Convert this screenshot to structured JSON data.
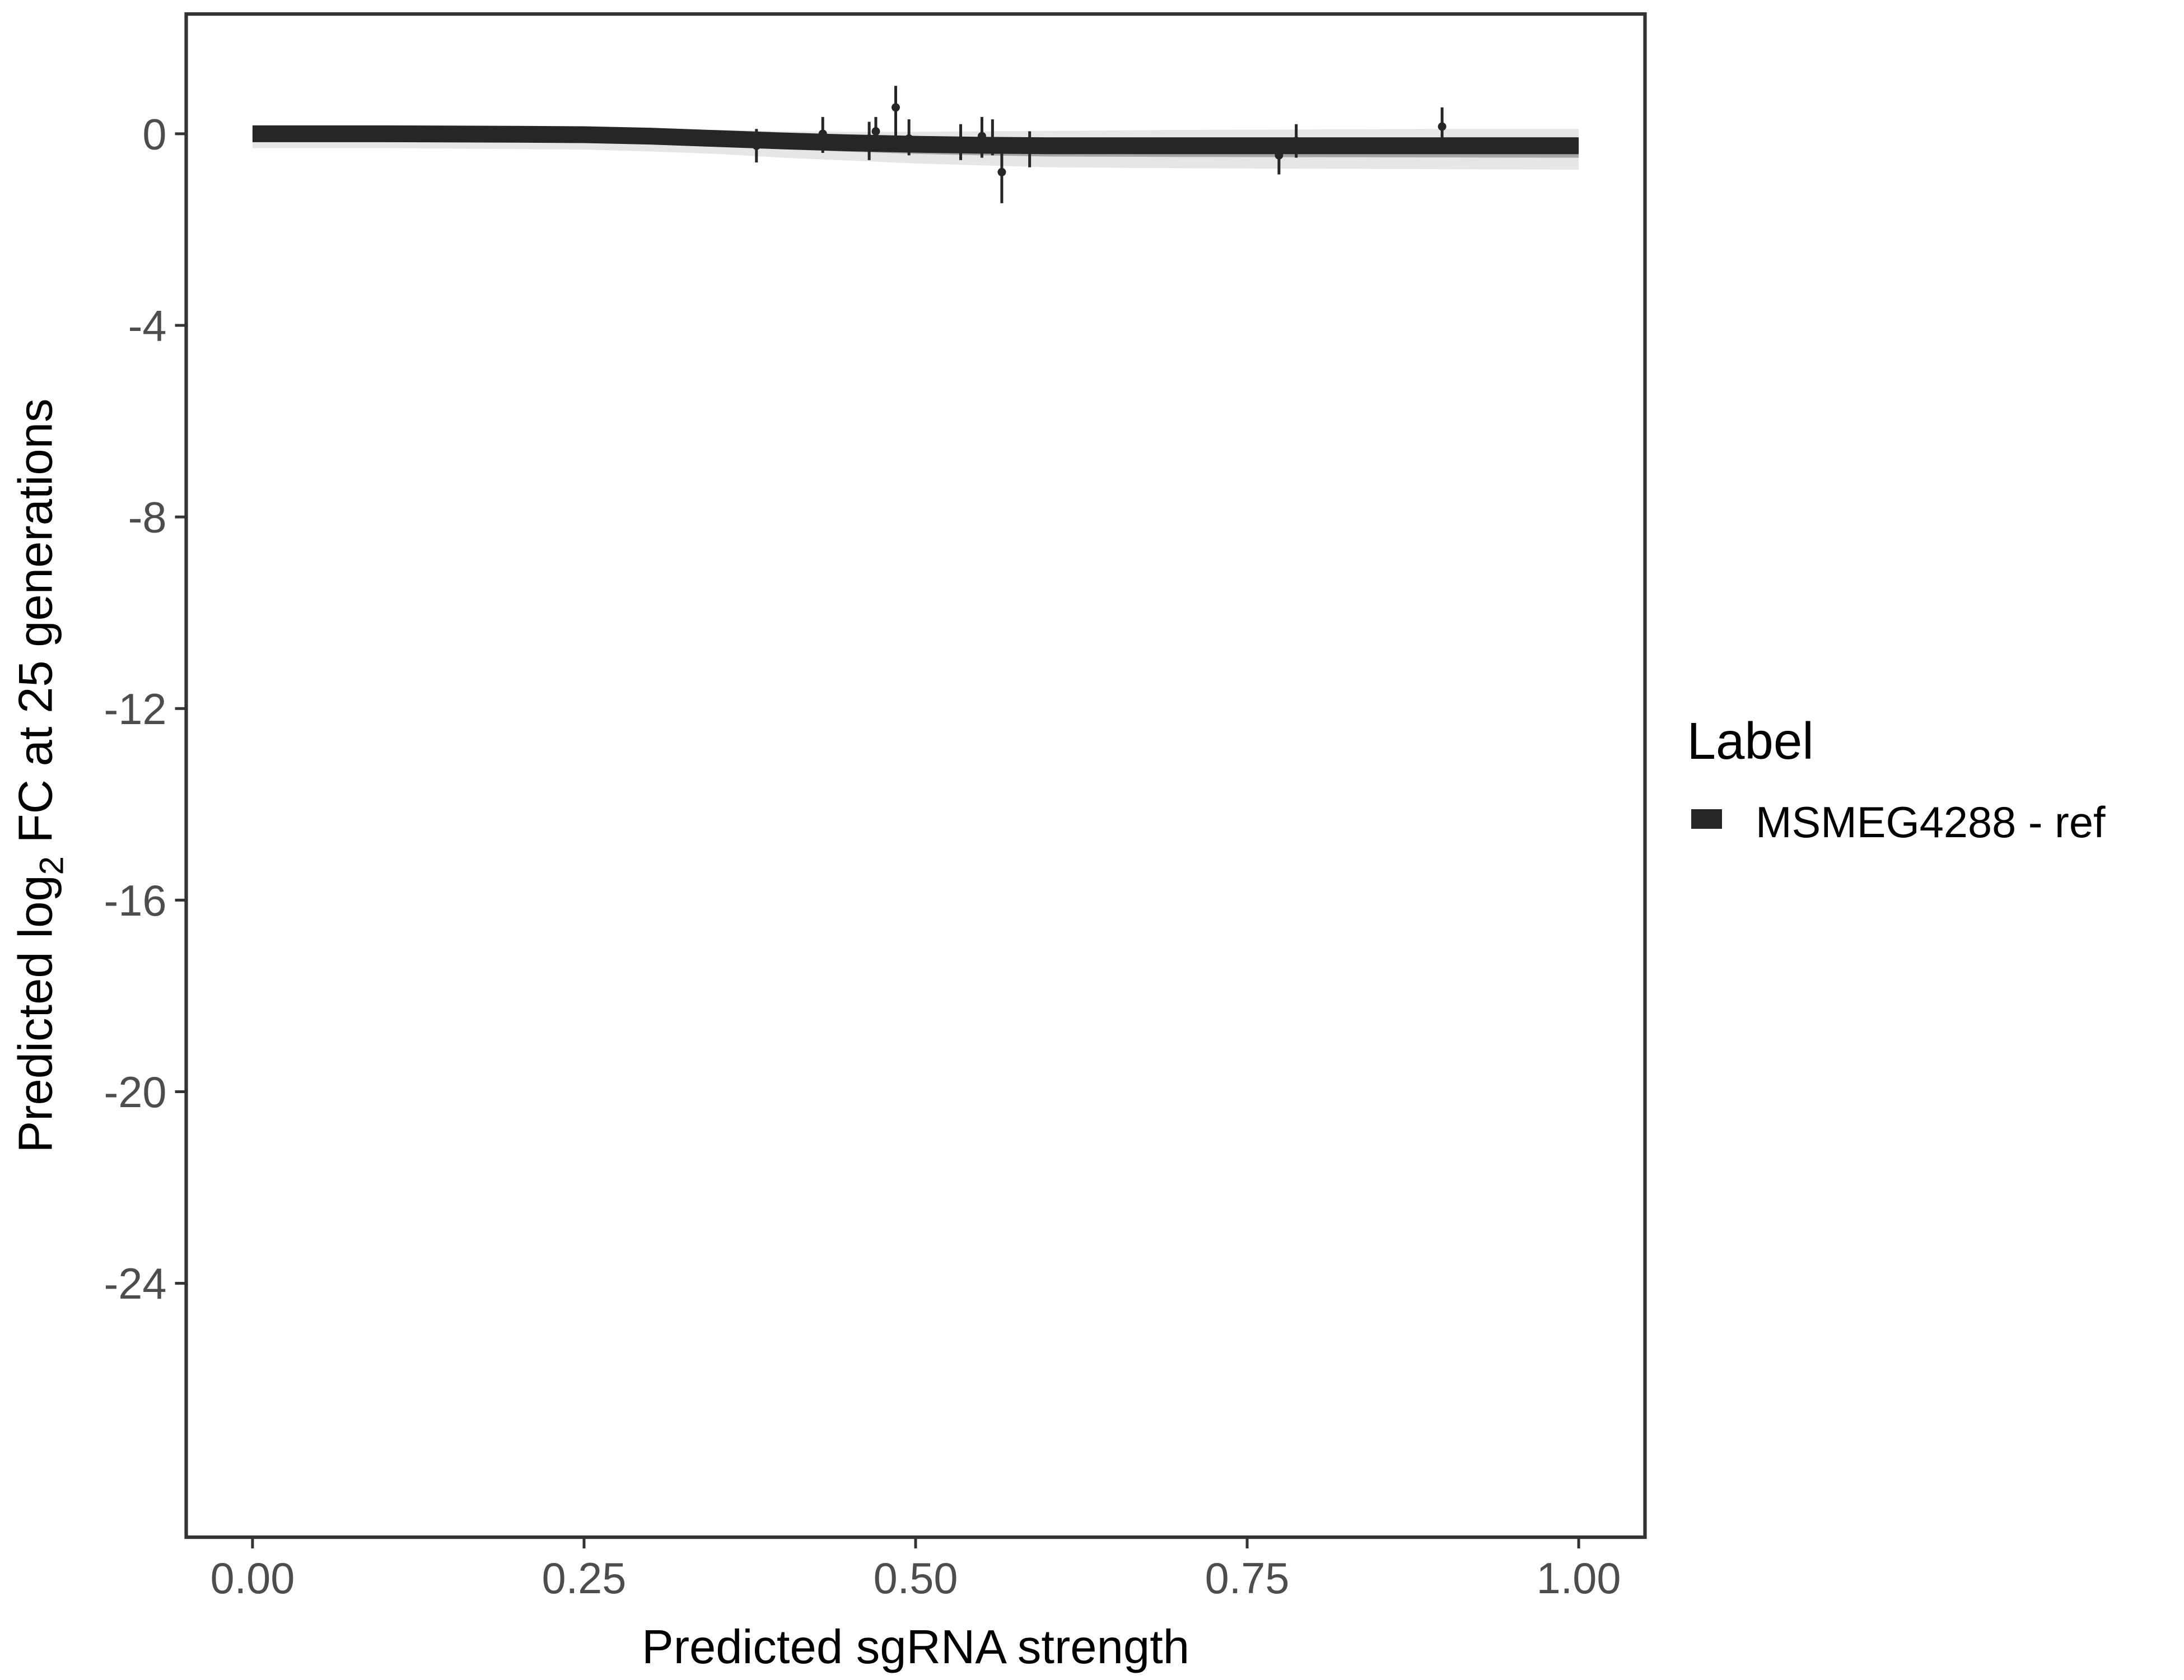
{
  "chart_data": {
    "type": "line",
    "title": "",
    "xlabel": "Predicted sgRNA strength",
    "ylabel": {
      "before": "Predicted  log",
      "sub": "2",
      "after": " FC at 25 generations"
    },
    "xlim": [
      -0.05,
      1.05
    ],
    "ylim": [
      -29.3,
      2.5
    ],
    "x_ticks": [
      0,
      0.25,
      0.5,
      0.75,
      1
    ],
    "x_tick_labels": [
      "0.00",
      "0.25",
      "0.50",
      "0.75",
      "1.00"
    ],
    "y_ticks": [
      0,
      -4,
      -8,
      -12,
      -16,
      -20,
      -24
    ],
    "y_tick_labels": [
      "0",
      "-4",
      "-8",
      "-12",
      "-16",
      "-20",
      "-24"
    ],
    "grid": false,
    "legend": {
      "title": "Label",
      "placement": "right",
      "entries": [
        "MSMEG4288 - ref"
      ]
    },
    "colors": {
      "series": "#262626",
      "ribbon": "#a6a6a6",
      "ribbon_outer": "#e6e6e6"
    },
    "series": [
      {
        "name": "MSMEG4288 - ref",
        "fit": {
          "x": [
            0,
            0.1,
            0.2,
            0.25,
            0.3,
            0.35,
            0.4,
            0.45,
            0.5,
            0.55,
            0.6,
            0.7,
            0.8,
            0.9,
            1.0
          ],
          "y": [
            0,
            0,
            -0.01,
            -0.02,
            -0.05,
            -0.1,
            -0.15,
            -0.19,
            -0.22,
            -0.24,
            -0.25,
            -0.25,
            -0.25,
            -0.25,
            -0.25
          ],
          "lower": [
            -0.3,
            -0.3,
            -0.32,
            -0.33,
            -0.37,
            -0.42,
            -0.5,
            -0.56,
            -0.62,
            -0.66,
            -0.7,
            -0.72,
            -0.73,
            -0.74,
            -0.75
          ],
          "upper": [
            0.15,
            0.15,
            0.14,
            0.13,
            0.11,
            0.08,
            0.05,
            0.04,
            0.04,
            0.05,
            0.06,
            0.08,
            0.09,
            0.1,
            0.1
          ]
        },
        "points": [
          {
            "x": 0.38,
            "y": -0.25,
            "lo": -0.6,
            "hi": 0.1
          },
          {
            "x": 0.43,
            "y": 0.0,
            "lo": -0.4,
            "hi": 0.35
          },
          {
            "x": 0.465,
            "y": -0.1,
            "lo": -0.55,
            "hi": 0.25
          },
          {
            "x": 0.47,
            "y": 0.05,
            "lo": -0.3,
            "hi": 0.35
          },
          {
            "x": 0.485,
            "y": 0.55,
            "lo": -0.15,
            "hi": 1.0
          },
          {
            "x": 0.495,
            "y": -0.1,
            "lo": -0.45,
            "hi": 0.3
          },
          {
            "x": 0.534,
            "y": -0.2,
            "lo": -0.55,
            "hi": 0.2
          },
          {
            "x": 0.55,
            "y": -0.05,
            "lo": -0.5,
            "hi": 0.35
          },
          {
            "x": 0.558,
            "y": -0.15,
            "lo": -0.45,
            "hi": 0.3
          },
          {
            "x": 0.565,
            "y": -0.8,
            "lo": -1.45,
            "hi": -0.4
          },
          {
            "x": 0.586,
            "y": -0.3,
            "lo": -0.7,
            "hi": 0.05
          },
          {
            "x": 0.774,
            "y": -0.45,
            "lo": -0.85,
            "hi": -0.1
          },
          {
            "x": 0.787,
            "y": -0.15,
            "lo": -0.5,
            "hi": 0.2
          },
          {
            "x": 0.897,
            "y": 0.15,
            "lo": -0.25,
            "hi": 0.55
          }
        ]
      }
    ]
  }
}
